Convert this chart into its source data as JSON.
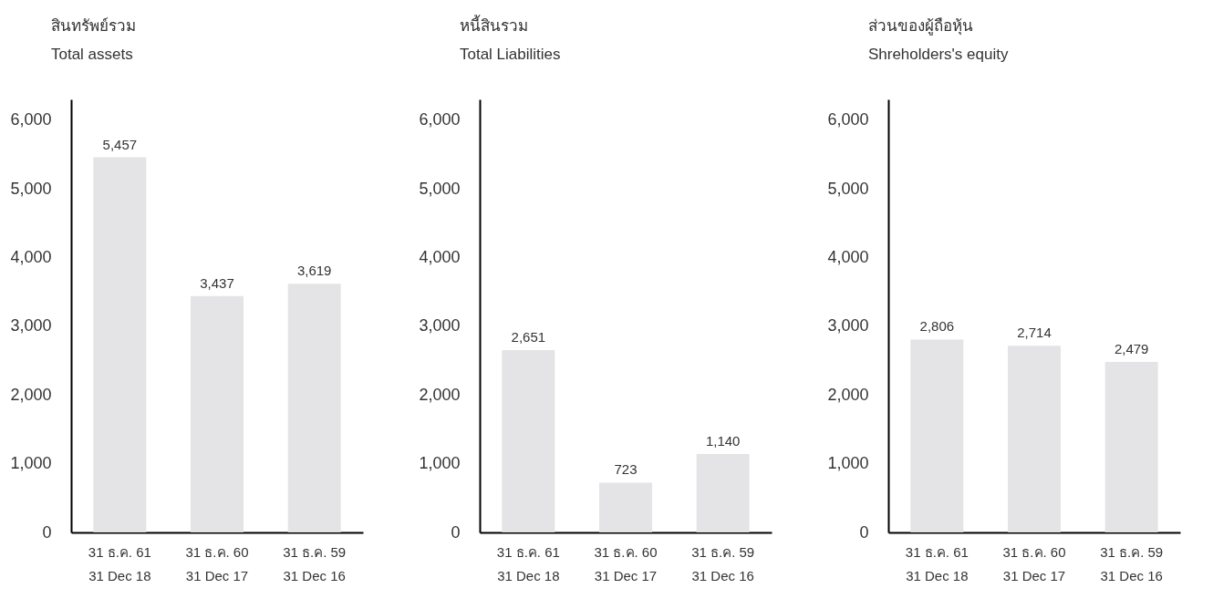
{
  "chart_data": [
    {
      "type": "bar",
      "title": "สินทรัพย์รวม",
      "subtitle": "Total assets",
      "categories": [
        "31 ธ.ค. 61\n31 Dec 18",
        "31 ธ.ค. 60\n31 Dec 17",
        "31 ธ.ค. 59\n31 Dec 16"
      ],
      "values": [
        5457,
        3437,
        3619
      ],
      "value_labels": [
        "5,457",
        "3,437",
        "3,619"
      ],
      "color": "#e4e4e6",
      "ylim": [
        0,
        6300
      ],
      "yticks": [
        {
          "value": 0,
          "label": "0"
        },
        {
          "value": 1000,
          "label": "1,000"
        },
        {
          "value": 2000,
          "label": "2,000"
        },
        {
          "value": 3000,
          "label": "3,000"
        },
        {
          "value": 4000,
          "label": "4,000"
        },
        {
          "value": 5000,
          "label": "5,000"
        },
        {
          "value": 6000,
          "label": "6,000"
        }
      ]
    },
    {
      "type": "bar",
      "title": "หนี้สินรวม",
      "subtitle": "Total Liabilities",
      "categories": [
        "31 ธ.ค. 61\n31 Dec 18",
        "31 ธ.ค. 60\n31 Dec 17",
        "31 ธ.ค. 59\n31 Dec 16"
      ],
      "values": [
        2651,
        723,
        1140
      ],
      "value_labels": [
        "2,651",
        "723",
        "1,140"
      ],
      "color": "#e4e4e6",
      "ylim": [
        0,
        6300
      ],
      "yticks": [
        {
          "value": 0,
          "label": "0"
        },
        {
          "value": 1000,
          "label": "1,000"
        },
        {
          "value": 2000,
          "label": "2,000"
        },
        {
          "value": 3000,
          "label": "3,000"
        },
        {
          "value": 4000,
          "label": "4,000"
        },
        {
          "value": 5000,
          "label": "5,000"
        },
        {
          "value": 6000,
          "label": "6,000"
        }
      ]
    },
    {
      "type": "bar",
      "title": "ส่วนของผู้ถือหุ้น",
      "subtitle": "Shreholders's equity",
      "categories": [
        "31 ธ.ค. 61\n31 Dec 18",
        "31 ธ.ค. 60\n31 Dec 17",
        "31 ธ.ค. 59\n31 Dec 16"
      ],
      "values": [
        2806,
        2714,
        2479
      ],
      "value_labels": [
        "2,806",
        "2,714",
        "2,479"
      ],
      "color": "#e4e4e6",
      "ylim": [
        0,
        6300
      ],
      "yticks": [
        {
          "value": 0,
          "label": "0"
        },
        {
          "value": 1000,
          "label": "1,000"
        },
        {
          "value": 2000,
          "label": "2,000"
        },
        {
          "value": 3000,
          "label": "3,000"
        },
        {
          "value": 4000,
          "label": "4,000"
        },
        {
          "value": 5000,
          "label": "5,000"
        },
        {
          "value": 6000,
          "label": "6,000"
        }
      ]
    }
  ]
}
